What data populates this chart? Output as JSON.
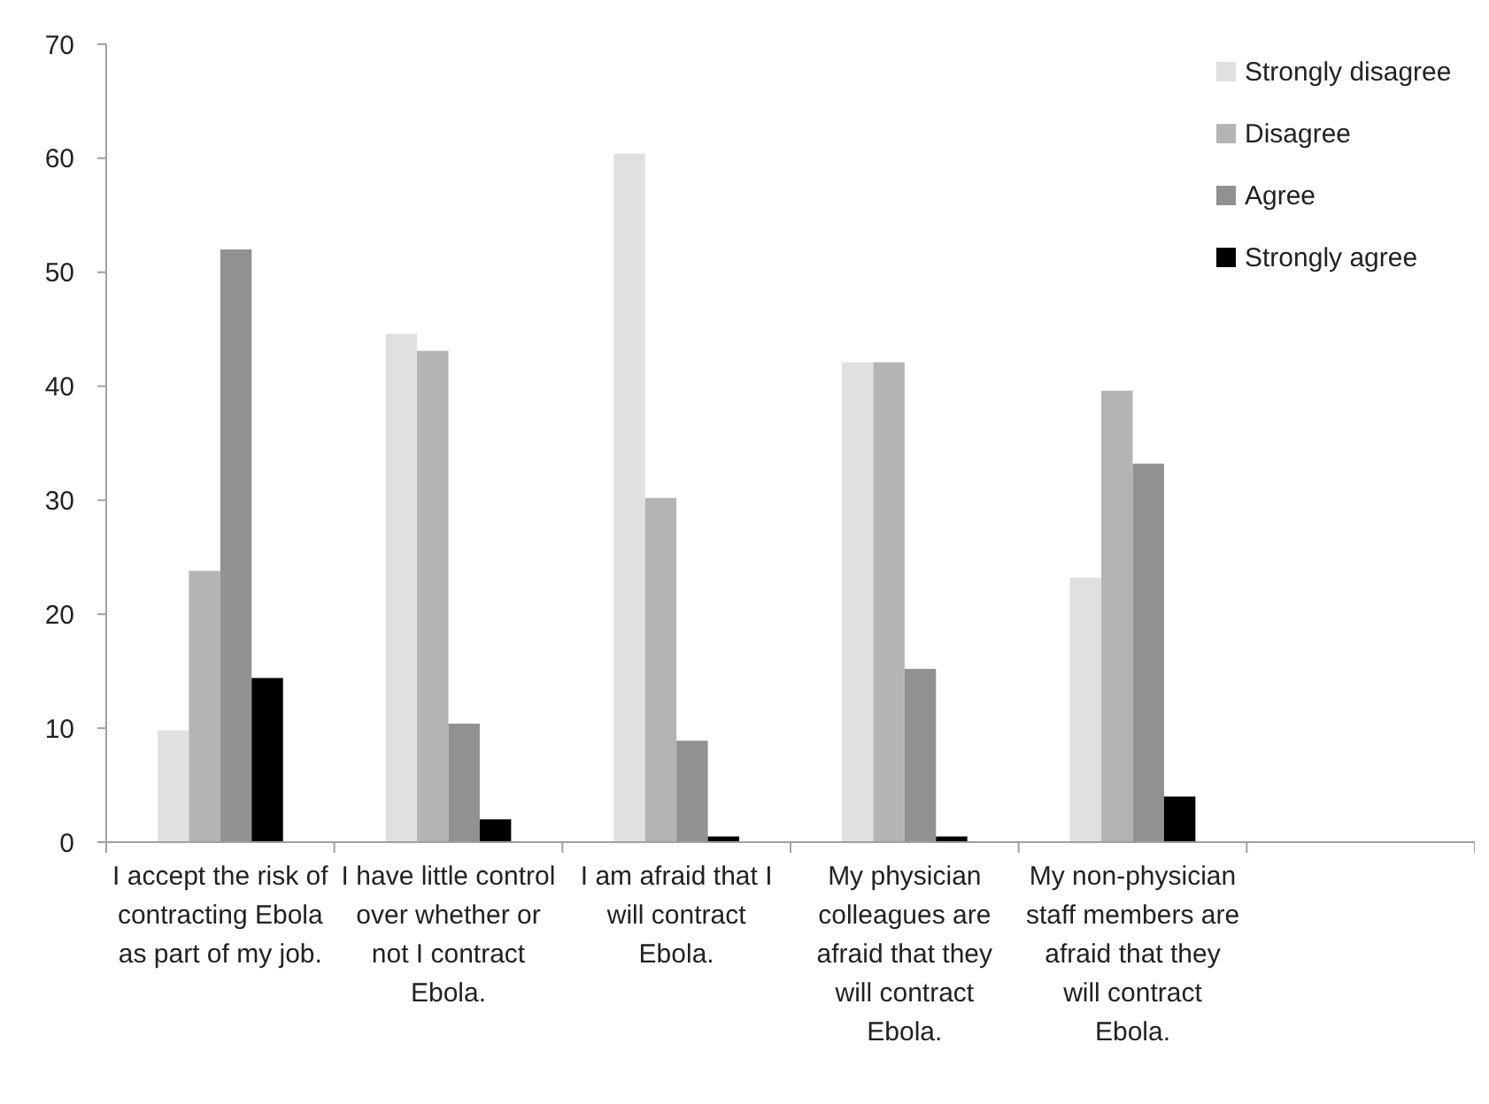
{
  "chart_data": {
    "type": "bar",
    "categories": [
      "I accept the risk of contracting Ebola as part of my job.",
      "I have little control over whether or not I contract Ebola.",
      "I am afraid that I will contract Ebola.",
      "My physician colleagues are afraid that they will contract Ebola.",
      "My non-physician staff members  are afraid that they will contract Ebola.",
      null
    ],
    "series": [
      {
        "name": "Strongly disagree",
        "color": "#e0e0e0",
        "values": [
          9.8,
          44.6,
          60.4,
          42.1,
          23.2,
          null
        ]
      },
      {
        "name": "Disagree",
        "color": "#b4b4b4",
        "values": [
          23.8,
          43.1,
          30.2,
          42.1,
          39.6,
          null
        ]
      },
      {
        "name": "Agree",
        "color": "#919191",
        "values": [
          52,
          10.4,
          8.9,
          15.2,
          33.2,
          null
        ]
      },
      {
        "name": "Strongly agree",
        "color": "#000000",
        "values": [
          14.4,
          2,
          0.5,
          0.5,
          4,
          null
        ]
      }
    ],
    "ylim": [
      0,
      70
    ],
    "yticks": [
      0,
      10,
      20,
      30,
      40,
      50,
      60,
      70
    ],
    "grid": false,
    "legend": "top right"
  }
}
